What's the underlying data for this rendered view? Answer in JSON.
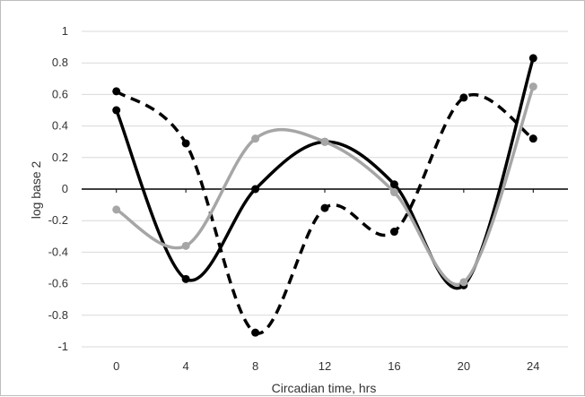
{
  "chart_data": {
    "type": "line",
    "title": "",
    "xlabel": "Circadian time, hrs",
    "ylabel": "log base 2",
    "x": [
      0,
      4,
      8,
      12,
      16,
      20,
      24
    ],
    "xlim": [
      -2,
      26
    ],
    "ylim": [
      -1,
      1
    ],
    "x_ticks": [
      "0",
      "4",
      "8",
      "12",
      "16",
      "20",
      "24"
    ],
    "y_ticks": [
      "-1",
      "-0.8",
      "-0.6",
      "-0.4",
      "-0.2",
      "0",
      "0.2",
      "0.4",
      "0.6",
      "0.8",
      "1"
    ],
    "grid": "horizontal",
    "legend": "none",
    "series": [
      {
        "style": "dashed",
        "color": "#000000",
        "values": [
          0.62,
          0.29,
          -0.91,
          -0.12,
          -0.27,
          0.58,
          0.32
        ]
      },
      {
        "style": "solid",
        "color": "#000000",
        "values": [
          0.5,
          -0.57,
          0.0,
          0.3,
          0.03,
          -0.61,
          0.83
        ]
      },
      {
        "style": "solid",
        "color": "#a6a6a6",
        "values": [
          -0.13,
          -0.36,
          0.32,
          0.3,
          -0.02,
          -0.59,
          0.65
        ]
      }
    ]
  }
}
